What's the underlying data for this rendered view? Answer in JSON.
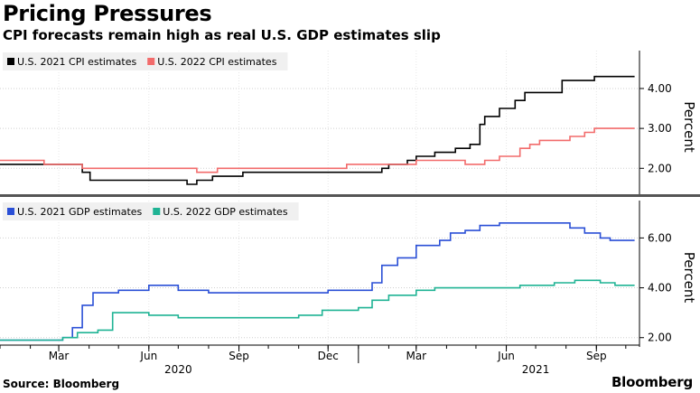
{
  "header": {
    "title": "Pricing Pressures",
    "subtitle": "CPI forecasts remain high as real U.S. GDP estimates slip"
  },
  "footer": {
    "source": "Source: Bloomberg",
    "brand": "Bloomberg"
  },
  "chart_data": [
    {
      "type": "line",
      "x_type": "date",
      "xlim": [
        "2020-01-01",
        "2021-10-15"
      ],
      "ylim": [
        1.35,
        4.95
      ],
      "yticks": [
        "2.00",
        "3.00",
        "4.00"
      ],
      "ylabel": "Percent",
      "legend_position": "top-left",
      "grid": true,
      "series": [
        {
          "name": "U.S. 2021 CPI estimates",
          "color": "#000000",
          "points": [
            [
              "2020-01-01",
              2.1
            ],
            [
              "2020-03-20",
              2.1
            ],
            [
              "2020-03-25",
              1.9
            ],
            [
              "2020-04-02",
              1.7
            ],
            [
              "2020-06-15",
              1.7
            ],
            [
              "2020-07-10",
              1.6
            ],
            [
              "2020-07-20",
              1.7
            ],
            [
              "2020-08-05",
              1.8
            ],
            [
              "2020-09-05",
              1.9
            ],
            [
              "2020-11-01",
              1.9
            ],
            [
              "2021-01-20",
              1.9
            ],
            [
              "2021-01-25",
              2.0
            ],
            [
              "2021-02-01",
              2.1
            ],
            [
              "2021-02-20",
              2.2
            ],
            [
              "2021-03-01",
              2.3
            ],
            [
              "2021-03-20",
              2.4
            ],
            [
              "2021-04-10",
              2.5
            ],
            [
              "2021-04-25",
              2.6
            ],
            [
              "2021-05-05",
              3.1
            ],
            [
              "2021-05-10",
              3.3
            ],
            [
              "2021-05-25",
              3.5
            ],
            [
              "2021-06-10",
              3.7
            ],
            [
              "2021-06-20",
              3.9
            ],
            [
              "2021-06-25",
              3.9
            ],
            [
              "2021-07-25",
              3.9
            ],
            [
              "2021-07-28",
              4.2
            ],
            [
              "2021-08-25",
              4.2
            ],
            [
              "2021-08-30",
              4.3
            ],
            [
              "2021-10-10",
              4.3
            ]
          ]
        },
        {
          "name": "U.S. 2022 CPI estimates",
          "color": "#f26b6b",
          "points": [
            [
              "2020-01-01",
              2.2
            ],
            [
              "2020-02-10",
              2.2
            ],
            [
              "2020-02-15",
              2.1
            ],
            [
              "2020-03-20",
              2.1
            ],
            [
              "2020-03-25",
              2.0
            ],
            [
              "2020-07-15",
              2.0
            ],
            [
              "2020-07-20",
              1.9
            ],
            [
              "2020-08-01",
              1.9
            ],
            [
              "2020-08-10",
              2.0
            ],
            [
              "2020-12-15",
              2.0
            ],
            [
              "2020-12-20",
              2.1
            ],
            [
              "2021-02-20",
              2.1
            ],
            [
              "2021-03-01",
              2.2
            ],
            [
              "2021-04-15",
              2.2
            ],
            [
              "2021-04-20",
              2.1
            ],
            [
              "2021-05-10",
              2.2
            ],
            [
              "2021-05-25",
              2.3
            ],
            [
              "2021-06-15",
              2.5
            ],
            [
              "2021-06-25",
              2.6
            ],
            [
              "2021-07-05",
              2.7
            ],
            [
              "2021-07-25",
              2.7
            ],
            [
              "2021-08-05",
              2.8
            ],
            [
              "2021-08-20",
              2.9
            ],
            [
              "2021-08-30",
              3.0
            ],
            [
              "2021-10-10",
              3.0
            ]
          ]
        }
      ]
    },
    {
      "type": "line",
      "x_type": "date",
      "xlim": [
        "2020-01-01",
        "2021-10-15"
      ],
      "ylim": [
        1.7,
        7.5
      ],
      "yticks": [
        "2.00",
        "4.00",
        "6.00"
      ],
      "ylabel": "Percent",
      "legend_position": "top-left",
      "grid": true,
      "xticks": [
        {
          "date": "2020-03-01",
          "label": "Mar"
        },
        {
          "date": "2020-06-01",
          "label": "Jun"
        },
        {
          "date": "2020-09-01",
          "label": "Sep"
        },
        {
          "date": "2020-12-01",
          "label": "Dec"
        },
        {
          "date": "2021-03-01",
          "label": "Mar"
        },
        {
          "date": "2021-06-01",
          "label": "Jun"
        },
        {
          "date": "2021-09-01",
          "label": "Sep"
        }
      ],
      "years": [
        {
          "date": "2020-07-01",
          "label": "2020"
        },
        {
          "date": "2021-07-01",
          "label": "2021"
        }
      ],
      "series": [
        {
          "name": "U.S. 2021 GDP estimates",
          "color": "#2a4fd6",
          "points": [
            [
              "2020-01-01",
              1.9
            ],
            [
              "2020-02-15",
              1.9
            ],
            [
              "2020-03-05",
              2.0
            ],
            [
              "2020-03-15",
              2.4
            ],
            [
              "2020-03-25",
              3.3
            ],
            [
              "2020-04-05",
              3.8
            ],
            [
              "2020-05-01",
              3.9
            ],
            [
              "2020-06-01",
              4.1
            ],
            [
              "2020-07-01",
              3.9
            ],
            [
              "2020-08-01",
              3.8
            ],
            [
              "2020-09-01",
              3.8
            ],
            [
              "2020-10-01",
              3.8
            ],
            [
              "2020-12-01",
              3.9
            ],
            [
              "2021-01-01",
              3.9
            ],
            [
              "2021-01-15",
              4.2
            ],
            [
              "2021-01-25",
              4.9
            ],
            [
              "2021-02-10",
              5.2
            ],
            [
              "2021-03-01",
              5.7
            ],
            [
              "2021-03-25",
              5.9
            ],
            [
              "2021-04-05",
              6.2
            ],
            [
              "2021-04-20",
              6.3
            ],
            [
              "2021-05-05",
              6.5
            ],
            [
              "2021-05-25",
              6.6
            ],
            [
              "2021-07-25",
              6.6
            ],
            [
              "2021-08-05",
              6.4
            ],
            [
              "2021-08-20",
              6.2
            ],
            [
              "2021-09-05",
              6.0
            ],
            [
              "2021-09-15",
              5.9
            ],
            [
              "2021-10-10",
              5.9
            ]
          ]
        },
        {
          "name": "U.S. 2022 GDP estimates",
          "color": "#1fb394",
          "points": [
            [
              "2020-01-01",
              1.9
            ],
            [
              "2020-02-20",
              1.9
            ],
            [
              "2020-03-05",
              2.0
            ],
            [
              "2020-03-20",
              2.2
            ],
            [
              "2020-04-10",
              2.3
            ],
            [
              "2020-04-25",
              3.0
            ],
            [
              "2020-06-01",
              2.9
            ],
            [
              "2020-07-01",
              2.8
            ],
            [
              "2020-10-15",
              2.8
            ],
            [
              "2020-11-01",
              2.9
            ],
            [
              "2020-11-25",
              3.1
            ],
            [
              "2021-01-01",
              3.2
            ],
            [
              "2021-01-15",
              3.5
            ],
            [
              "2021-02-01",
              3.7
            ],
            [
              "2021-03-01",
              3.9
            ],
            [
              "2021-03-20",
              4.0
            ],
            [
              "2021-05-01",
              4.0
            ],
            [
              "2021-06-15",
              4.1
            ],
            [
              "2021-07-20",
              4.2
            ],
            [
              "2021-08-10",
              4.3
            ],
            [
              "2021-09-05",
              4.2
            ],
            [
              "2021-09-20",
              4.1
            ],
            [
              "2021-10-10",
              4.1
            ]
          ]
        }
      ]
    }
  ]
}
